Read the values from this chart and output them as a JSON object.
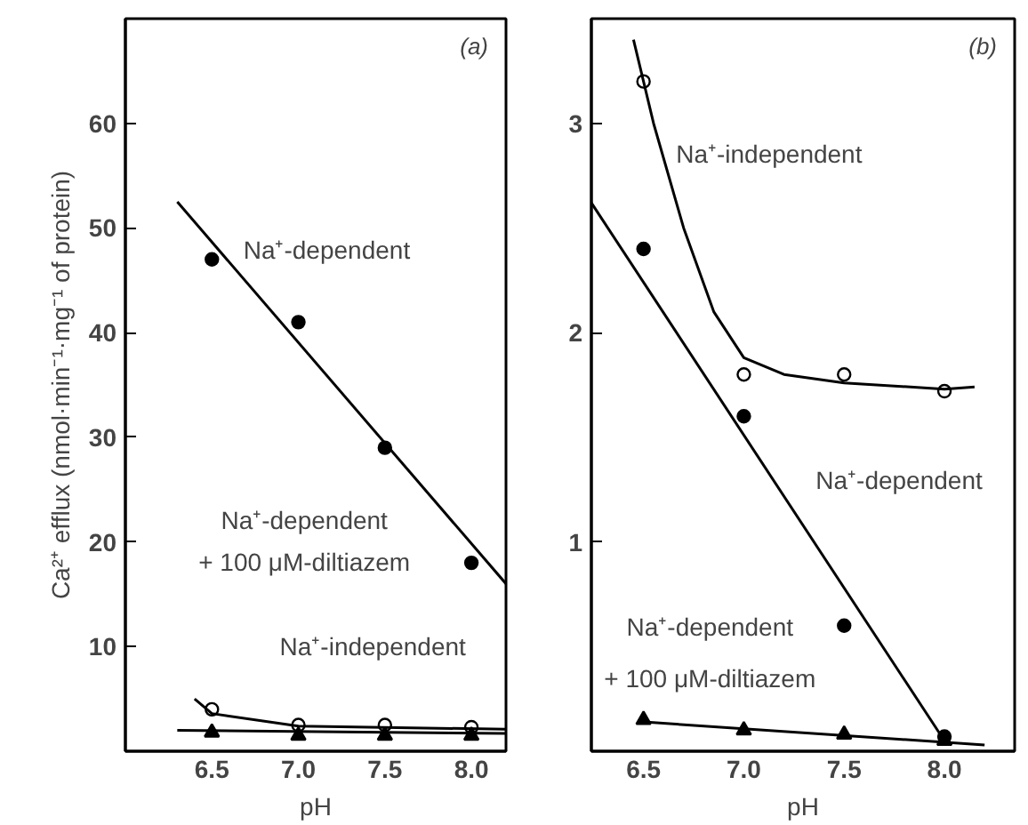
{
  "chart_data": [
    {
      "type": "scatter",
      "title": "(a)",
      "xlabel": "pH",
      "ylabel": "Ca²⁺ efflux (nmol·min⁻¹·mg⁻¹ of protein)",
      "xlim": [
        6.0,
        8.2
      ],
      "xticks": [
        {
          "value": 6.5,
          "label": "6.5"
        },
        {
          "value": 7.0,
          "label": "7.0"
        },
        {
          "value": 7.5,
          "label": "7.5"
        },
        {
          "value": 8.0,
          "label": "8.0"
        }
      ],
      "ylim": [
        0,
        70
      ],
      "yticks": [
        10,
        20,
        30,
        40,
        50,
        60
      ],
      "grid": false,
      "series": [
        {
          "marker": "circle",
          "color": "#000000",
          "x": [
            6.5,
            7.0,
            7.5,
            8.0
          ],
          "values": [
            47,
            41,
            29,
            18
          ]
        },
        {
          "marker": "circle",
          "color": "#ffffff",
          "x": [
            6.5,
            7.0,
            7.5,
            8.0
          ],
          "values": [
            4,
            2.5,
            2.5,
            2.3
          ]
        },
        {
          "marker": "triangle",
          "color": "#000000",
          "x": [
            6.5,
            7.0,
            7.5,
            8.0
          ],
          "values": [
            1.8,
            1.5,
            1.5,
            1.5
          ]
        },
        {
          "type": "line",
          "marker": "none",
          "color": "#000000",
          "x": [
            6.3,
            8.2
          ],
          "values": [
            52.5,
            16
          ]
        },
        {
          "type": "line",
          "marker": "none",
          "color": "#000000",
          "x": [
            6.4,
            6.5,
            7.0,
            8.2
          ],
          "values": [
            5,
            3.6,
            2.4,
            2.1
          ]
        },
        {
          "type": "line",
          "marker": "none",
          "color": "#000000",
          "x": [
            6.3,
            8.2
          ],
          "values": [
            2,
            1.7
          ]
        }
      ],
      "annotations": [
        "Na⁺-dependent",
        "Na⁺-dependent",
        "+ 100 μM-diltiazem",
        "Na⁺-independent"
      ]
    },
    {
      "type": "scatter",
      "title": "(b)",
      "xlabel": "pH",
      "xlim": [
        6.24,
        8.35
      ],
      "xticks": [
        {
          "value": 6.5,
          "label": "6.5"
        },
        {
          "value": 7.0,
          "label": "7.0"
        },
        {
          "value": 7.5,
          "label": "7.5"
        },
        {
          "value": 8.0,
          "label": "8.0"
        }
      ],
      "ylim": [
        0,
        3.5
      ],
      "yticks": [
        1,
        2,
        3
      ],
      "grid": false,
      "series": [
        {
          "marker": "circle",
          "color": "#ffffff",
          "x": [
            6.5,
            7.0,
            7.5,
            8.0
          ],
          "values": [
            3.2,
            1.8,
            1.8,
            1.72
          ]
        },
        {
          "marker": "circle",
          "color": "#000000",
          "x": [
            6.5,
            7.0,
            7.5,
            8.0
          ],
          "values": [
            2.4,
            1.6,
            0.6,
            0.07
          ]
        },
        {
          "marker": "triangle",
          "color": "#000000",
          "x": [
            6.5,
            7.0,
            7.5,
            8.0
          ],
          "values": [
            0.15,
            0.1,
            0.08,
            0.05
          ]
        },
        {
          "type": "line",
          "marker": "none",
          "color": "#000000",
          "x": [
            6.45,
            6.55,
            6.7,
            6.85,
            7.0,
            7.2,
            7.5,
            8.0,
            8.15
          ],
          "values": [
            3.4,
            3.0,
            2.5,
            2.1,
            1.88,
            1.8,
            1.76,
            1.73,
            1.74
          ]
        },
        {
          "type": "line",
          "marker": "none",
          "color": "#000000",
          "x": [
            6.24,
            8.0
          ],
          "values": [
            2.62,
            0.05
          ]
        },
        {
          "type": "line",
          "marker": "none",
          "color": "#000000",
          "x": [
            6.5,
            8.2
          ],
          "values": [
            0.14,
            0.03
          ]
        }
      ],
      "annotations": [
        "Na⁺-independent",
        "Na⁺-dependent",
        "Na⁺-dependent",
        "+ 100 μM-diltiazem"
      ]
    }
  ]
}
